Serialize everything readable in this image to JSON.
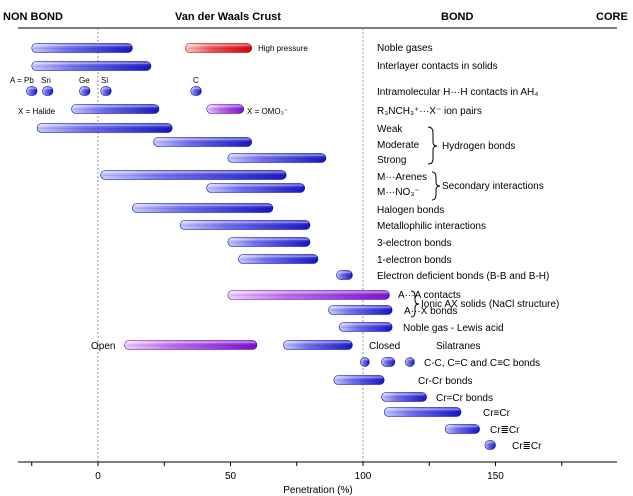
{
  "header": {
    "non_bond": "NON BOND",
    "vdw_crust": "Van der Waals Crust",
    "bond": "BOND",
    "core": "CORE"
  },
  "axis": {
    "xlabel": "Penetration (%)",
    "ticks": [
      "0",
      "50",
      "100",
      "150"
    ],
    "range": [
      -30,
      198
    ]
  },
  "rows": [
    {
      "label": "Noble gases"
    },
    {
      "label": "Interlayer contacts in solids"
    },
    {
      "label": "Intramolecular H···H contacts in AH₄"
    },
    {
      "label": "R₃NCH₃⁺···X⁻ ion pairs"
    },
    {
      "label": "Weak"
    },
    {
      "label": "Moderate"
    },
    {
      "label": "Strong"
    },
    {
      "label": "M···Arenes"
    },
    {
      "label": "M···NO₃⁻"
    },
    {
      "label": "Halogen bonds"
    },
    {
      "label": "Metallophilic interactions"
    },
    {
      "label": "3-electron bonds"
    },
    {
      "label": "1-electron bonds"
    },
    {
      "label": "Electron deficient bonds (B-B and B-H)"
    },
    {
      "label": "A···A contacts"
    },
    {
      "label": "A···X bonds"
    },
    {
      "label": "Noble gas - Lewis acid"
    },
    {
      "label": "Silatranes"
    },
    {
      "label": "C-C, C=C and C≡C bonds"
    },
    {
      "label": "Cr-Cr bonds"
    },
    {
      "label": "Cr=Cr bonds"
    },
    {
      "label": "Cr≡Cr"
    },
    {
      "label": "Cr≣Cr"
    },
    {
      "label": "Cr≣Cr"
    }
  ],
  "group_labels": {
    "hydrogen_bonds": "Hydrogen bonds",
    "secondary_interactions": "Secondary interactions",
    "ionic_ax": "Ionic AX solids (NaCl structure)"
  },
  "annotations": {
    "high_pressure": "High pressure",
    "x_omo3": "X = OMO₃⁻",
    "x_halide": "X = Halide",
    "a_eq": "A = Pb",
    "sn": "Sn",
    "ge": "Ge",
    "si": "Si",
    "c": "C",
    "open": "Open",
    "closed": "Closed"
  },
  "bars": [
    {
      "row": 0,
      "start": -25,
      "end": 13,
      "color": "blue"
    },
    {
      "row": 0,
      "start": 33,
      "end": 58,
      "color": "red"
    },
    {
      "row": 1,
      "start": -25,
      "end": 20,
      "color": "blue"
    },
    {
      "row": 2,
      "start": -27,
      "end": -23,
      "color": "blue"
    },
    {
      "row": 2,
      "start": -21,
      "end": -17,
      "color": "blue"
    },
    {
      "row": 2,
      "start": -7,
      "end": -3,
      "color": "blue"
    },
    {
      "row": 2,
      "start": 1,
      "end": 5,
      "color": "blue"
    },
    {
      "row": 2,
      "start": 35,
      "end": 39,
      "color": "blue"
    },
    {
      "row": 3,
      "start": -10,
      "end": 23,
      "color": "blue"
    },
    {
      "row": 3,
      "start": 41,
      "end": 55,
      "color": "purple"
    },
    {
      "row": 4,
      "start": -23,
      "end": 28,
      "color": "blue"
    },
    {
      "row": 5,
      "start": 21,
      "end": 58,
      "color": "blue"
    },
    {
      "row": 6,
      "start": 49,
      "end": 86,
      "color": "blue"
    },
    {
      "row": 7,
      "start": 1,
      "end": 71,
      "color": "blue"
    },
    {
      "row": 8,
      "start": 41,
      "end": 78,
      "color": "blue"
    },
    {
      "row": 9,
      "start": 13,
      "end": 66,
      "color": "blue"
    },
    {
      "row": 10,
      "start": 31,
      "end": 80,
      "color": "blue"
    },
    {
      "row": 11,
      "start": 49,
      "end": 80,
      "color": "blue"
    },
    {
      "row": 12,
      "start": 53,
      "end": 83,
      "color": "blue"
    },
    {
      "row": 13,
      "start": 90,
      "end": 96,
      "color": "blue"
    },
    {
      "row": 14,
      "start": 49,
      "end": 110,
      "color": "purple"
    },
    {
      "row": 15,
      "start": 87,
      "end": 111,
      "color": "blue"
    },
    {
      "row": 16,
      "start": 91,
      "end": 111,
      "color": "blue"
    },
    {
      "row": 17,
      "start": 10,
      "end": 60,
      "color": "purple"
    },
    {
      "row": 17,
      "start": 70,
      "end": 96,
      "color": "blue"
    },
    {
      "row": 18,
      "start": 99,
      "end": 102,
      "color": "blue"
    },
    {
      "row": 18,
      "start": 107,
      "end": 112,
      "color": "blue"
    },
    {
      "row": 18,
      "start": 116,
      "end": 119,
      "color": "blue"
    },
    {
      "row": 19,
      "start": 89,
      "end": 108,
      "color": "blue"
    },
    {
      "row": 20,
      "start": 107,
      "end": 124,
      "color": "blue"
    },
    {
      "row": 21,
      "start": 108,
      "end": 137,
      "color": "blue"
    },
    {
      "row": 22,
      "start": 131,
      "end": 144,
      "color": "blue"
    },
    {
      "row": 23,
      "start": 146,
      "end": 150,
      "color": "blue"
    }
  ],
  "colors": {
    "blue_light": "#b8bcff",
    "blue_dark": "#1a1ad0",
    "red_light": "#ffb0b0",
    "red_dark": "#e00000",
    "purple_light": "#e6b8ff",
    "purple_dark": "#8a1fd8",
    "axis": "#000000",
    "dashed": "#777777"
  }
}
